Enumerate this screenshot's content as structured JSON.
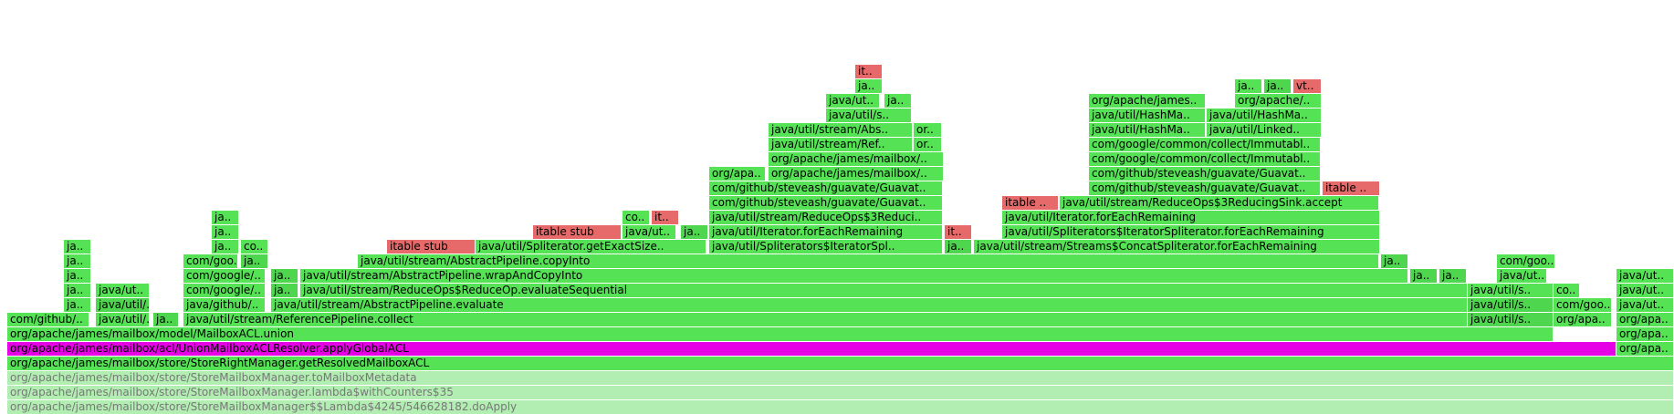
{
  "colors": {
    "java": "#55e255",
    "java_alt": "#4fd64f",
    "native": "#e66a6a",
    "highlight": "#e600e6",
    "faded": "#b2eeb2"
  },
  "frames": [
    {
      "label": "org/apache/james/mailbox/store/StoreMailboxManager$$Lambda$4245/546628182.doApply",
      "x": 0.0045,
      "w": 0.9955,
      "d": 0,
      "k": "faded"
    },
    {
      "label": "org/apache/james/mailbox/store/StoreMailboxManager.lambda$withCounters$35",
      "x": 0.0045,
      "w": 0.9955,
      "d": 1,
      "k": "faded"
    },
    {
      "label": "org/apache/james/mailbox/store/StoreMailboxManager.toMailboxMetadata",
      "x": 0.0045,
      "w": 0.9955,
      "d": 2,
      "k": "faded"
    },
    {
      "label": "org/apache/james/mailbox/store/StoreRightManager.getResolvedMailboxACL",
      "x": 0.0045,
      "w": 0.9955,
      "d": 3,
      "k": "java"
    },
    {
      "label": "org/apache/james/mailbox/acl/UnionMailboxACLResolver.applyGlobalACL",
      "x": 0.0045,
      "w": 0.9612,
      "d": 4,
      "k": "highlight"
    },
    {
      "label": "org/apa..",
      "x": 0.9657,
      "w": 0.0343,
      "d": 4,
      "k": "java"
    },
    {
      "label": "org/apache/james/mailbox/model/MailboxACL.union",
      "x": 0.0045,
      "w": 0.9238,
      "d": 5,
      "k": "java"
    },
    {
      "label": "org/apa..",
      "x": 0.9657,
      "w": 0.0343,
      "d": 5,
      "k": "java"
    },
    {
      "label": "com/github/..",
      "x": 0.0045,
      "w": 0.0491,
      "d": 6,
      "k": "java"
    },
    {
      "label": "java/util/..",
      "x": 0.057,
      "w": 0.032,
      "d": 6,
      "k": "java"
    },
    {
      "label": "ja..",
      "x": 0.0916,
      "w": 0.0153,
      "d": 6,
      "k": "java_alt"
    },
    {
      "label": "java/util/stream/ReferencePipeline.collect",
      "x": 0.1094,
      "w": 0.7674,
      "d": 6,
      "k": "java"
    },
    {
      "label": "java/util/s..",
      "x": 0.8768,
      "w": 0.0514,
      "d": 6,
      "k": "java_alt"
    },
    {
      "label": "org/apa..",
      "x": 0.9282,
      "w": 0.035,
      "d": 6,
      "k": "java"
    },
    {
      "label": "org/apa..",
      "x": 0.9657,
      "w": 0.0343,
      "d": 6,
      "k": "java"
    },
    {
      "label": "ja..",
      "x": 0.0383,
      "w": 0.0163,
      "d": 7,
      "k": "java"
    },
    {
      "label": "java/util/..",
      "x": 0.057,
      "w": 0.032,
      "d": 7,
      "k": "java_alt"
    },
    {
      "label": "java/github/..",
      "x": 0.1094,
      "w": 0.049,
      "d": 7,
      "k": "java"
    },
    {
      "label": "java/util/stream/AbstractPipeline.evaluate",
      "x": 0.162,
      "w": 0.7148,
      "d": 7,
      "k": "java"
    },
    {
      "label": "java/util/s..",
      "x": 0.8768,
      "w": 0.0514,
      "d": 7,
      "k": "java_alt"
    },
    {
      "label": "com/goo..",
      "x": 0.9282,
      "w": 0.035,
      "d": 7,
      "k": "java"
    },
    {
      "label": "java/ut..",
      "x": 0.9657,
      "w": 0.0343,
      "d": 7,
      "k": "java"
    },
    {
      "label": "ja..",
      "x": 0.0383,
      "w": 0.0163,
      "d": 8,
      "k": "java"
    },
    {
      "label": "java/ut..",
      "x": 0.057,
      "w": 0.032,
      "d": 8,
      "k": "java"
    },
    {
      "label": "com/google/..",
      "x": 0.1094,
      "w": 0.049,
      "d": 8,
      "k": "java"
    },
    {
      "label": "ja..",
      "x": 0.162,
      "w": 0.0163,
      "d": 8,
      "k": "java_alt"
    },
    {
      "label": "java/util/stream/ReduceOps$ReduceOp.evaluateSequential",
      "x": 0.1794,
      "w": 0.6974,
      "d": 8,
      "k": "java"
    },
    {
      "label": "java/util/s..",
      "x": 0.8768,
      "w": 0.0514,
      "d": 8,
      "k": "java"
    },
    {
      "label": "co..",
      "x": 0.9282,
      "w": 0.016,
      "d": 8,
      "k": "java"
    },
    {
      "label": "java/ut..",
      "x": 0.9657,
      "w": 0.0343,
      "d": 8,
      "k": "java"
    },
    {
      "label": "ja..",
      "x": 0.0383,
      "w": 0.0163,
      "d": 9,
      "k": "java"
    },
    {
      "label": "com/google/..",
      "x": 0.1094,
      "w": 0.049,
      "d": 9,
      "k": "java"
    },
    {
      "label": "ja..",
      "x": 0.162,
      "w": 0.0163,
      "d": 9,
      "k": "java_alt"
    },
    {
      "label": "java/util/stream/AbstractPipeline.wrapAndCopyInto",
      "x": 0.1794,
      "w": 0.6617,
      "d": 9,
      "k": "java"
    },
    {
      "label": "ja..",
      "x": 0.8426,
      "w": 0.0163,
      "d": 9,
      "k": "java_alt"
    },
    {
      "label": "ja..",
      "x": 0.8599,
      "w": 0.0163,
      "d": 9,
      "k": "java_alt"
    },
    {
      "label": "java/ut..",
      "x": 0.8941,
      "w": 0.03,
      "d": 9,
      "k": "java"
    },
    {
      "label": "java/ut..",
      "x": 0.9657,
      "w": 0.0343,
      "d": 9,
      "k": "java"
    },
    {
      "label": "ja..",
      "x": 0.0383,
      "w": 0.0163,
      "d": 10,
      "k": "java"
    },
    {
      "label": "com/goo..",
      "x": 0.1094,
      "w": 0.0325,
      "d": 10,
      "k": "java"
    },
    {
      "label": "ja..",
      "x": 0.144,
      "w": 0.0163,
      "d": 10,
      "k": "java_alt"
    },
    {
      "label": "java/util/stream/AbstractPipeline.copyInto",
      "x": 0.2139,
      "w": 0.6104,
      "d": 10,
      "k": "java"
    },
    {
      "label": "ja..",
      "x": 0.8252,
      "w": 0.0163,
      "d": 10,
      "k": "java_alt"
    },
    {
      "label": "com/goo..",
      "x": 0.8941,
      "w": 0.035,
      "d": 10,
      "k": "java"
    },
    {
      "label": "ja..",
      "x": 0.0383,
      "w": 0.0163,
      "d": 11,
      "k": "java"
    },
    {
      "label": "ja..",
      "x": 0.1266,
      "w": 0.0163,
      "d": 11,
      "k": "java"
    },
    {
      "label": "co..",
      "x": 0.144,
      "w": 0.0163,
      "d": 11,
      "k": "java"
    },
    {
      "label": "itable stub",
      "x": 0.231,
      "w": 0.0527,
      "d": 11,
      "k": "native"
    },
    {
      "label": "java/util/Spliterator.getExactSize..",
      "x": 0.2843,
      "w": 0.1381,
      "d": 11,
      "k": "java"
    },
    {
      "label": "java/util/Spliterators$IteratorSpl..",
      "x": 0.4237,
      "w": 0.1398,
      "d": 11,
      "k": "java"
    },
    {
      "label": "ja..",
      "x": 0.5645,
      "w": 0.0163,
      "d": 11,
      "k": "java_alt"
    },
    {
      "label": "java/util/stream/Streams$ConcatSpliterator.forEachRemaining",
      "x": 0.5816,
      "w": 0.2427,
      "d": 11,
      "k": "java"
    },
    {
      "label": "ja..",
      "x": 0.1266,
      "w": 0.0163,
      "d": 12,
      "k": "java"
    },
    {
      "label": "itable stub",
      "x": 0.3182,
      "w": 0.0527,
      "d": 12,
      "k": "native"
    },
    {
      "label": "java/ut..",
      "x": 0.3717,
      "w": 0.032,
      "d": 12,
      "k": "java"
    },
    {
      "label": "ja..",
      "x": 0.4066,
      "w": 0.0163,
      "d": 12,
      "k": "java_alt"
    },
    {
      "label": "java/util/Iterator.forEachRemaining",
      "x": 0.4237,
      "w": 0.1398,
      "d": 12,
      "k": "java"
    },
    {
      "label": "it..",
      "x": 0.5645,
      "w": 0.0163,
      "d": 12,
      "k": "native"
    },
    {
      "label": "java/util/Spliterators$IteratorSpliterator.forEachRemaining",
      "x": 0.5988,
      "w": 0.2255,
      "d": 12,
      "k": "java"
    },
    {
      "label": "ja..",
      "x": 0.1266,
      "w": 0.0163,
      "d": 13,
      "k": "java"
    },
    {
      "label": "co..",
      "x": 0.3717,
      "w": 0.0163,
      "d": 13,
      "k": "java"
    },
    {
      "label": "it..",
      "x": 0.3891,
      "w": 0.0163,
      "d": 13,
      "k": "native"
    },
    {
      "label": "java/util/stream/ReduceOps$3Reduci..",
      "x": 0.4237,
      "w": 0.1398,
      "d": 13,
      "k": "java"
    },
    {
      "label": "java/util/Iterator.forEachRemaining",
      "x": 0.5988,
      "w": 0.2255,
      "d": 13,
      "k": "java"
    },
    {
      "label": "com/github/steveash/guavate/Guavat..",
      "x": 0.4237,
      "w": 0.1398,
      "d": 14,
      "k": "java"
    },
    {
      "label": "itable ..",
      "x": 0.5988,
      "w": 0.034,
      "d": 14,
      "k": "native"
    },
    {
      "label": "java/util/stream/ReduceOps$3ReducingSink.accept",
      "x": 0.6332,
      "w": 0.1911,
      "d": 14,
      "k": "java"
    },
    {
      "label": "com/github/steveash/guavate/Guavat..",
      "x": 0.4237,
      "w": 0.1398,
      "d": 15,
      "k": "java"
    },
    {
      "label": "com/github/steveash/guavate/Guavat..",
      "x": 0.6503,
      "w": 0.1384,
      "d": 15,
      "k": "java"
    },
    {
      "label": "itable ..",
      "x": 0.7899,
      "w": 0.0343,
      "d": 15,
      "k": "native"
    },
    {
      "label": "org/apa..",
      "x": 0.4237,
      "w": 0.034,
      "d": 16,
      "k": "java"
    },
    {
      "label": "org/apache/james/mailbox/..",
      "x": 0.4589,
      "w": 0.1045,
      "d": 16,
      "k": "java"
    },
    {
      "label": "com/github/steveash/guavate/Guavat..",
      "x": 0.6503,
      "w": 0.1384,
      "d": 16,
      "k": "java"
    },
    {
      "label": "org/apache/james/mailbox/..",
      "x": 0.4589,
      "w": 0.1045,
      "d": 17,
      "k": "java"
    },
    {
      "label": "com/google/common/collect/Immutabl..",
      "x": 0.6503,
      "w": 0.1384,
      "d": 17,
      "k": "java"
    },
    {
      "label": "java/util/stream/Ref..",
      "x": 0.4589,
      "w": 0.086,
      "d": 18,
      "k": "java"
    },
    {
      "label": "or..",
      "x": 0.546,
      "w": 0.017,
      "d": 18,
      "k": "java"
    },
    {
      "label": "com/google/common/collect/Immutabl..",
      "x": 0.6503,
      "w": 0.1384,
      "d": 18,
      "k": "java"
    },
    {
      "label": "java/util/stream/Abs..",
      "x": 0.4589,
      "w": 0.086,
      "d": 19,
      "k": "java"
    },
    {
      "label": "or..",
      "x": 0.546,
      "w": 0.017,
      "d": 19,
      "k": "java"
    },
    {
      "label": "java/util/HashMa..",
      "x": 0.6503,
      "w": 0.0697,
      "d": 19,
      "k": "java"
    },
    {
      "label": "java/util/Linked..",
      "x": 0.7208,
      "w": 0.0685,
      "d": 19,
      "k": "java"
    },
    {
      "label": "java/util/s..",
      "x": 0.4936,
      "w": 0.0514,
      "d": 20,
      "k": "java"
    },
    {
      "label": "java/util/HashMa..",
      "x": 0.6503,
      "w": 0.0697,
      "d": 20,
      "k": "java"
    },
    {
      "label": "java/util/HashMa..",
      "x": 0.7208,
      "w": 0.0685,
      "d": 20,
      "k": "java"
    },
    {
      "label": "java/ut..",
      "x": 0.4936,
      "w": 0.032,
      "d": 21,
      "k": "java"
    },
    {
      "label": "ja..",
      "x": 0.5282,
      "w": 0.0163,
      "d": 21,
      "k": "java"
    },
    {
      "label": "org/apache/james..",
      "x": 0.6503,
      "w": 0.0697,
      "d": 21,
      "k": "java"
    },
    {
      "label": "org/apache/..",
      "x": 0.7377,
      "w": 0.0516,
      "d": 21,
      "k": "java"
    },
    {
      "label": "ja..",
      "x": 0.5107,
      "w": 0.0163,
      "d": 22,
      "k": "java"
    },
    {
      "label": "ja..",
      "x": 0.7377,
      "w": 0.0163,
      "d": 22,
      "k": "java"
    },
    {
      "label": "ja..",
      "x": 0.7551,
      "w": 0.0163,
      "d": 22,
      "k": "java_alt"
    },
    {
      "label": "vt..",
      "x": 0.7724,
      "w": 0.0169,
      "d": 22,
      "k": "native"
    },
    {
      "label": "it..",
      "x": 0.5107,
      "w": 0.0163,
      "d": 23,
      "k": "native"
    }
  ]
}
